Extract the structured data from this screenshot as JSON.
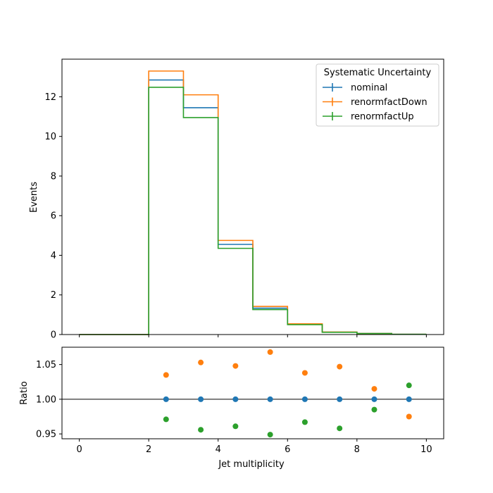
{
  "chart_data": [
    {
      "type": "line",
      "style": "step-histogram",
      "xlim": [
        -0.5,
        10.5
      ],
      "ylim": [
        0,
        13.9
      ],
      "ylabel": "Events",
      "xlabel": "",
      "bin_edges": [
        0,
        1,
        2,
        3,
        4,
        5,
        6,
        7,
        8,
        9,
        10
      ],
      "yticks": [
        0,
        2,
        4,
        6,
        8,
        10,
        12
      ],
      "ytick_labels": [
        "0",
        "2",
        "4",
        "6",
        "8",
        "10",
        "12"
      ],
      "xticks": [
        0,
        2,
        4,
        6,
        8,
        10
      ],
      "xtick_labels": [
        "",
        "",
        "",
        "",
        "",
        ""
      ],
      "grid": false,
      "legend": {
        "title": "Systematic Uncertainty",
        "placement": "top-right"
      },
      "series": [
        {
          "name": "nominal",
          "color": "#1f77b4",
          "values": [
            0,
            0,
            12.85,
            11.45,
            4.55,
            1.33,
            0.52,
            0.12,
            0.05,
            0.01
          ]
        },
        {
          "name": "renormfactDown",
          "color": "#ff7f0e",
          "values": [
            0,
            0,
            13.3,
            12.1,
            4.75,
            1.42,
            0.54,
            0.125,
            0.05,
            0.01
          ]
        },
        {
          "name": "renormfactUp",
          "color": "#2ca02c",
          "values": [
            0,
            0,
            12.48,
            10.95,
            4.35,
            1.26,
            0.5,
            0.115,
            0.05,
            0.01
          ]
        }
      ]
    },
    {
      "type": "scatter",
      "xlim": [
        -0.5,
        10.5
      ],
      "ylim": [
        0.943,
        1.075
      ],
      "ylabel": "Ratio",
      "xlabel": "Jet multiplicity",
      "xticks": [
        0,
        2,
        4,
        6,
        8,
        10
      ],
      "xtick_labels": [
        "0",
        "2",
        "4",
        "6",
        "8",
        "10"
      ],
      "yticks": [
        0.95,
        1.0,
        1.05
      ],
      "ytick_labels": [
        "0.95",
        "1.00",
        "1.05"
      ],
      "reference_line": 1.0,
      "grid": false,
      "series": [
        {
          "name": "nominal",
          "color": "#1f77b4",
          "x": [
            2.5,
            3.5,
            4.5,
            5.5,
            6.5,
            7.5,
            8.5,
            9.5
          ],
          "y": [
            1.0,
            1.0,
            1.0,
            1.0,
            1.0,
            1.0,
            1.0,
            1.0
          ]
        },
        {
          "name": "renormfactDown",
          "color": "#ff7f0e",
          "x": [
            2.5,
            3.5,
            4.5,
            5.5,
            6.5,
            7.5,
            8.5,
            9.5
          ],
          "y": [
            1.035,
            1.053,
            1.048,
            1.068,
            1.038,
            1.047,
            1.015,
            0.975
          ]
        },
        {
          "name": "renormfactUp",
          "color": "#2ca02c",
          "x": [
            2.5,
            3.5,
            4.5,
            5.5,
            6.5,
            7.5,
            8.5,
            9.5
          ],
          "y": [
            0.971,
            0.956,
            0.961,
            0.949,
            0.967,
            0.958,
            0.985,
            1.02
          ]
        }
      ]
    }
  ]
}
